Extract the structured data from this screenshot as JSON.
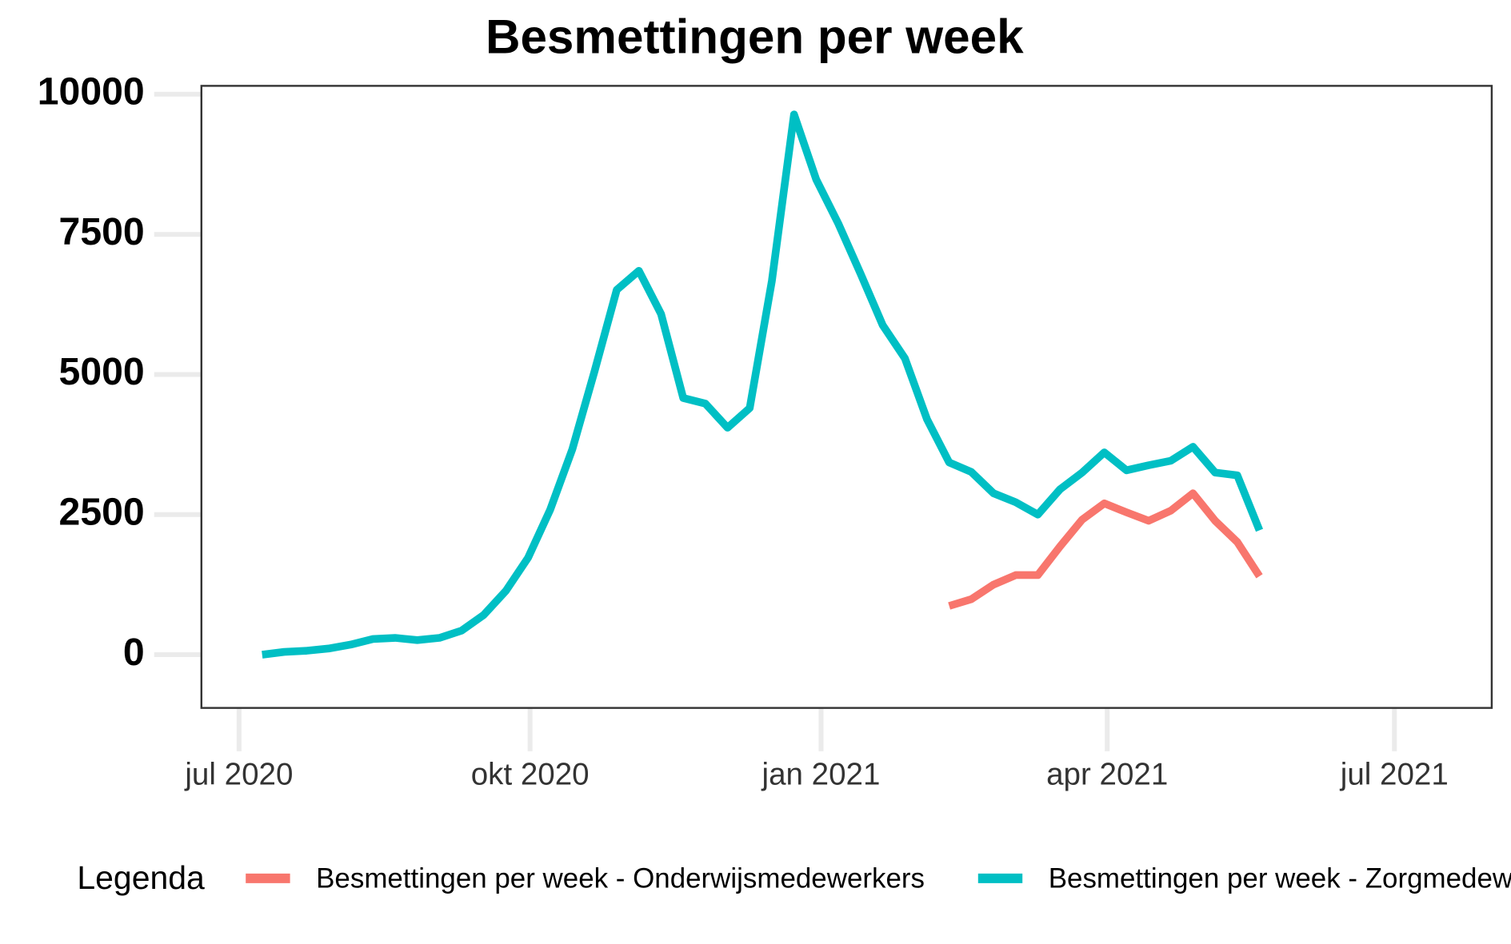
{
  "chart_data": {
    "type": "line",
    "title": "Besmettingen per week",
    "legend_title": "Legenda",
    "categories": [
      null,
      null,
      null,
      null,
      null,
      null,
      null,
      null,
      null,
      null,
      null,
      null,
      null,
      null,
      null,
      null,
      null,
      null,
      null,
      null,
      null,
      null,
      null,
      null,
      null,
      null,
      null,
      null,
      null,
      null,
      null,
      null,
      null,
      null,
      null,
      null,
      null,
      null,
      null,
      null,
      null,
      null,
      null,
      null,
      null,
      null
    ],
    "xlim": [
      -2.74,
      55.48
    ],
    "xticks": [
      {
        "value": -1.04,
        "label": "jul 2020"
      },
      {
        "value": 12.09,
        "label": "okt 2020"
      },
      {
        "value": 25.22,
        "label": "jan 2021"
      },
      {
        "value": 38.13,
        "label": "apr 2021"
      },
      {
        "value": 51.09,
        "label": "jul 2021"
      }
    ],
    "ylim": [
      -950,
      10150
    ],
    "yticks": [
      0,
      2500,
      5000,
      7500,
      10000
    ],
    "series": [
      {
        "name": "Besmettingen per week - Onderwijsmedewerkers",
        "color": "#f8766d",
        "values": [
          null,
          null,
          null,
          null,
          null,
          null,
          null,
          null,
          null,
          null,
          null,
          null,
          null,
          null,
          null,
          null,
          null,
          null,
          null,
          null,
          null,
          null,
          null,
          null,
          null,
          null,
          null,
          null,
          null,
          null,
          null,
          870,
          990,
          1250,
          1420,
          1420,
          1930,
          2410,
          2700,
          2540,
          2390,
          2570,
          2880,
          2390,
          2010,
          1400
        ]
      },
      {
        "name": "Besmettingen per week - Zorgmedewerkers",
        "color": "#00bfc4",
        "values": [
          0,
          50,
          70,
          110,
          180,
          280,
          300,
          260,
          300,
          430,
          710,
          1140,
          1730,
          2590,
          3670,
          5060,
          6510,
          6850,
          6080,
          4580,
          4480,
          4050,
          4400,
          6670,
          9640,
          8480,
          7690,
          6800,
          5880,
          5290,
          4200,
          3430,
          3260,
          2880,
          2720,
          2500,
          2950,
          3250,
          3610,
          3290,
          3380,
          3460,
          3710,
          3250,
          3200,
          2220
        ]
      }
    ]
  }
}
